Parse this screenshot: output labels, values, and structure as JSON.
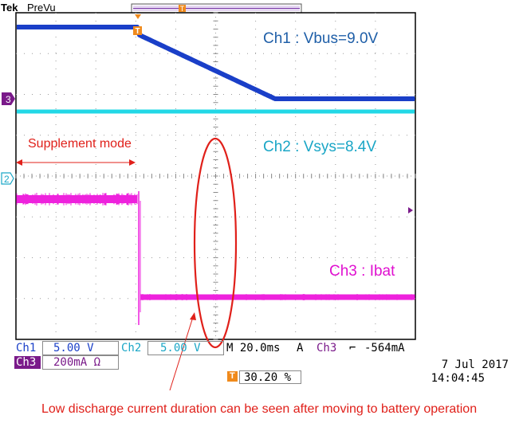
{
  "header": {
    "brand": "Tek",
    "mode": "PreVu"
  },
  "markers": {
    "ch3_ground": "3",
    "ch2_ground": "2",
    "trigger": "T"
  },
  "annotations": {
    "ch1": "Ch1 : Vbus=9.0V",
    "ch2": "Ch2 : Vsys=8.4V",
    "ch3": "Ch3 : Ibat",
    "supplement": "Supplement mode",
    "footer": "Low discharge current duration can be seen after moving to battery operation"
  },
  "readouts": {
    "ch1_label": "Ch1",
    "ch1_scale": "5.00 V",
    "ch2_label": "Ch2",
    "ch2_scale": "5.00 V",
    "ch3_label": "Ch3",
    "ch3_scale": "200mA Ω",
    "timebase": "M 20.0ms",
    "trigger_mode": "A",
    "trigger_source": "Ch3",
    "trigger_slope": "⌐",
    "trigger_level": "-564mA",
    "trigger_pos_icon": "T",
    "trigger_pos": "30.20 %",
    "date": "7 Jul  2017",
    "time": "14:04:45"
  },
  "colors": {
    "ch1": "#1a3fc8",
    "ch2": "#22d8e6",
    "ch3": "#ee22dd",
    "annotation": "#e0201a",
    "ch3_badge": "#7a1a8a",
    "trigger_orange": "#f08a1c"
  }
}
